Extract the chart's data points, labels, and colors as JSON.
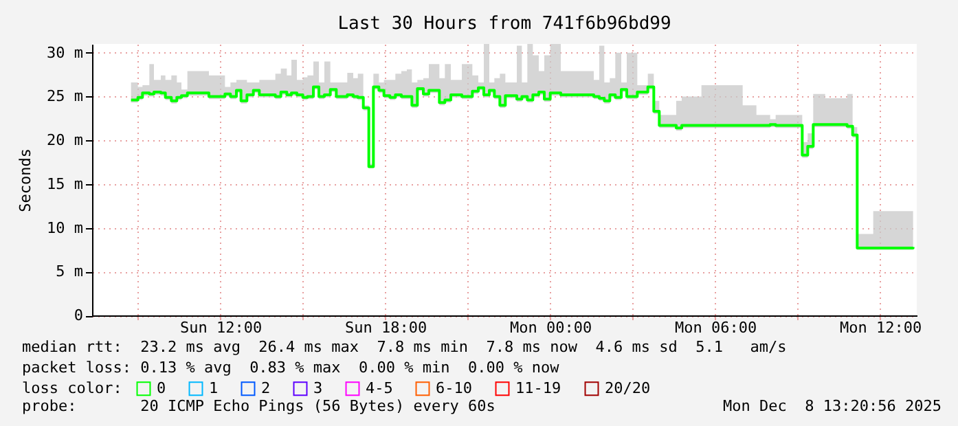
{
  "chart_data": {
    "type": "step",
    "title": "Last 30 Hours from 741f6b96bd99",
    "ylabel": "Seconds",
    "x": [
      "2025-12-07T08:45",
      "2025-12-07T09:00",
      "2025-12-07T09:10",
      "2025-12-07T09:25",
      "2025-12-07T09:35",
      "2025-12-07T09:50",
      "2025-12-07T10:00",
      "2025-12-07T10:13",
      "2025-12-07T10:25",
      "2025-12-07T10:35",
      "2025-12-07T10:48",
      "2025-12-07T11:35",
      "2025-12-07T12:10",
      "2025-12-07T12:22",
      "2025-12-07T12:35",
      "2025-12-07T12:45",
      "2025-12-07T12:58",
      "2025-12-07T13:12",
      "2025-12-07T13:25",
      "2025-12-07T14:00",
      "2025-12-07T14:12",
      "2025-12-07T14:25",
      "2025-12-07T14:35",
      "2025-12-07T14:47",
      "2025-12-07T15:00",
      "2025-12-07T15:10",
      "2025-12-07T15:23",
      "2025-12-07T15:35",
      "2025-12-07T15:47",
      "2025-12-07T16:00",
      "2025-12-07T16:13",
      "2025-12-07T16:37",
      "2025-12-07T16:50",
      "2025-12-07T17:00",
      "2025-12-07T17:12",
      "2025-12-07T17:24",
      "2025-12-07T17:34",
      "2025-12-07T17:46",
      "2025-12-07T17:57",
      "2025-12-07T18:10",
      "2025-12-07T18:22",
      "2025-12-07T18:35",
      "2025-12-07T18:47",
      "2025-12-07T18:58",
      "2025-12-07T19:10",
      "2025-12-07T19:23",
      "2025-12-07T19:35",
      "2025-12-07T19:58",
      "2025-12-07T20:10",
      "2025-12-07T20:23",
      "2025-12-07T20:47",
      "2025-12-07T21:10",
      "2025-12-07T21:23",
      "2025-12-07T21:35",
      "2025-12-07T21:47",
      "2025-12-07T21:58",
      "2025-12-07T22:10",
      "2025-12-07T22:22",
      "2025-12-07T22:47",
      "2025-12-07T22:58",
      "2025-12-07T23:10",
      "2025-12-07T23:22",
      "2025-12-07T23:35",
      "2025-12-07T23:47",
      "2025-12-08T00:00",
      "2025-12-08T00:23",
      "2025-12-08T01:35",
      "2025-12-08T01:47",
      "2025-12-08T01:58",
      "2025-12-08T02:10",
      "2025-12-08T02:22",
      "2025-12-08T02:35",
      "2025-12-08T02:47",
      "2025-12-08T03:10",
      "2025-12-08T03:33",
      "2025-12-08T03:46",
      "2025-12-08T03:58",
      "2025-12-08T04:35",
      "2025-12-08T04:47",
      "2025-12-08T05:30",
      "2025-12-08T06:15",
      "2025-12-08T07:00",
      "2025-12-08T07:30",
      "2025-12-08T08:00",
      "2025-12-08T08:12",
      "2025-12-08T09:10",
      "2025-12-08T09:22",
      "2025-12-08T09:34",
      "2025-12-08T10:00",
      "2025-12-08T10:48",
      "2025-12-08T11:00",
      "2025-12-08T11:10",
      "2025-12-08T11:45",
      "2025-12-08T12:30",
      "2025-12-08T13:12"
    ],
    "series": [
      {
        "name": "0",
        "color": "#00ff00",
        "values": [
          24.6,
          24.9,
          25.4,
          25.3,
          25.5,
          25.4,
          24.9,
          24.5,
          24.9,
          25.1,
          25.4,
          25.0,
          25.3,
          25.0,
          25.7,
          24.5,
          25.2,
          25.7,
          25.2,
          25.0,
          25.5,
          25.2,
          25.4,
          25.2,
          24.9,
          25.0,
          26.1,
          25.0,
          25.2,
          25.8,
          25.0,
          25.2,
          25.0,
          24.9,
          23.7,
          17.0,
          26.1,
          25.7,
          25.1,
          24.9,
          25.2,
          25.0,
          25.0,
          24.0,
          25.9,
          25.3,
          25.7,
          24.3,
          24.6,
          25.2,
          25.0,
          25.6,
          26.0,
          25.2,
          25.7,
          25.0,
          24.0,
          25.1,
          24.7,
          25.0,
          24.6,
          25.2,
          25.5,
          24.7,
          25.4,
          25.2,
          25.0,
          24.8,
          24.5,
          25.2,
          24.9,
          25.8,
          25.0,
          25.5,
          26.1,
          23.3,
          21.7,
          21.4,
          21.7,
          21.7,
          21.7,
          21.7,
          21.7,
          21.8,
          21.7,
          18.3,
          19.3,
          21.8,
          21.8,
          21.6,
          20.6,
          7.7,
          7.7,
          7.7,
          7.8
        ],
        "upper": [
          26.6,
          26.1,
          26.3,
          28.7,
          26.9,
          27.4,
          26.9,
          27.4,
          26.6,
          25.8,
          27.9,
          27.4,
          26.1,
          26.6,
          26.9,
          26.9,
          26.6,
          26.6,
          26.9,
          27.6,
          28.2,
          27.4,
          29.2,
          26.9,
          27.2,
          27.4,
          29.0,
          26.6,
          29.0,
          26.6,
          26.6,
          27.7,
          27.1,
          27.6,
          24.0,
          17.3,
          27.6,
          26.6,
          26.9,
          26.9,
          27.6,
          27.9,
          28.1,
          26.6,
          26.9,
          27.1,
          28.7,
          27.1,
          28.7,
          26.9,
          28.7,
          27.4,
          26.6,
          31.0,
          26.6,
          27.1,
          27.6,
          26.6,
          30.8,
          26.6,
          31.0,
          29.7,
          27.9,
          29.7,
          31.0,
          27.9,
          26.9,
          30.8,
          26.6,
          27.1,
          30.0,
          26.6,
          30.0,
          26.3,
          27.6,
          24.5,
          22.9,
          24.5,
          25.0,
          26.3,
          26.3,
          24.0,
          22.9,
          22.4,
          22.9,
          19.8,
          20.8,
          25.3,
          24.8,
          25.3,
          21.5,
          9.3,
          11.9,
          11.9,
          9.1
        ],
        "lower": [
          24.3,
          24.6,
          25.1,
          25.0,
          25.2,
          25.1,
          24.6,
          24.2,
          24.6,
          24.8,
          25.1,
          24.7,
          25.0,
          24.7,
          25.4,
          24.2,
          24.9,
          25.4,
          24.9,
          24.7,
          25.2,
          24.9,
          25.1,
          24.9,
          24.6,
          24.7,
          25.8,
          24.7,
          24.9,
          25.5,
          24.7,
          24.9,
          24.7,
          24.6,
          23.4,
          16.8,
          25.8,
          25.4,
          24.8,
          24.6,
          24.9,
          24.7,
          24.7,
          23.7,
          25.6,
          25.0,
          25.4,
          24.0,
          24.3,
          24.9,
          24.7,
          25.3,
          25.7,
          24.9,
          25.4,
          24.7,
          23.7,
          24.8,
          24.4,
          24.7,
          24.3,
          24.9,
          25.2,
          24.4,
          25.1,
          24.9,
          24.7,
          24.5,
          24.2,
          24.9,
          24.6,
          25.5,
          24.7,
          25.2,
          25.8,
          23.0,
          21.4,
          21.1,
          21.4,
          21.4,
          21.4,
          21.4,
          21.4,
          21.5,
          21.4,
          18.0,
          19.0,
          21.5,
          21.5,
          21.3,
          20.3,
          7.5,
          7.5,
          7.5,
          7.6
        ]
      },
      {
        "name": "1",
        "color": "#00b8ff",
        "values": [
          null,
          null,
          null,
          null,
          null,
          null,
          null,
          null,
          null,
          null,
          null,
          null,
          null,
          null,
          null,
          null,
          null,
          null,
          null,
          null,
          null,
          null,
          null,
          null,
          null,
          null,
          null,
          null,
          null,
          null,
          null,
          null,
          null,
          null,
          null,
          null,
          null,
          null,
          null,
          null,
          null,
          null,
          null,
          null,
          null,
          null,
          null,
          null,
          null,
          null,
          null,
          null,
          null,
          null,
          null,
          null,
          null,
          null,
          null,
          null,
          null,
          null,
          null,
          null,
          null,
          null,
          null,
          null,
          null,
          null,
          null,
          null,
          null,
          null,
          null,
          null,
          null,
          null,
          null,
          null,
          null,
          null,
          null,
          null,
          null,
          null,
          null,
          null,
          null,
          null,
          null,
          null,
          null,
          null,
          null
        ]
      },
      {
        "name": "2",
        "color": "#0059ff",
        "values": [
          null,
          null,
          null,
          null,
          null,
          null,
          null,
          null,
          null,
          null,
          null,
          null,
          null,
          null,
          null,
          null,
          null,
          null,
          null,
          null,
          null,
          null,
          null,
          null,
          null,
          null,
          null,
          null,
          null,
          null,
          null,
          null,
          null,
          null,
          null,
          null,
          null,
          null,
          null,
          null,
          null,
          null,
          null,
          null,
          null,
          null,
          null,
          null,
          null,
          null,
          null,
          null,
          null,
          null,
          null,
          null,
          null,
          null,
          null,
          null,
          null,
          null,
          null,
          null,
          null,
          null,
          null,
          null,
          null,
          null,
          null,
          null,
          null,
          null,
          null,
          null,
          null,
          null,
          null,
          null,
          null,
          null,
          null,
          null,
          null,
          null,
          null,
          null,
          null,
          null,
          null,
          null,
          null,
          null,
          null
        ]
      },
      {
        "name": "3",
        "color": "#5e00ff",
        "values": [
          null,
          null,
          null,
          null,
          null,
          null,
          null,
          null,
          null,
          null,
          null,
          null,
          null,
          null,
          null,
          null,
          null,
          null,
          null,
          null,
          null,
          null,
          null,
          null,
          null,
          null,
          null,
          null,
          null,
          null,
          null,
          null,
          null,
          null,
          null,
          null,
          null,
          null,
          null,
          null,
          null,
          null,
          null,
          null,
          null,
          null,
          null,
          null,
          null,
          null,
          null,
          null,
          null,
          null,
          null,
          null,
          null,
          null,
          null,
          null,
          null,
          null,
          null,
          null,
          null,
          null,
          null,
          null,
          null,
          null,
          null,
          null,
          null,
          null,
          null,
          null,
          null,
          null,
          null,
          null,
          null,
          null,
          null,
          null,
          null,
          null,
          null,
          null,
          null,
          null,
          null,
          null,
          null,
          null,
          null
        ]
      },
      {
        "name": "4-5",
        "color": "#ff00ff",
        "values": [
          null,
          null,
          null,
          null,
          null,
          null,
          null,
          null,
          null,
          null,
          null,
          null,
          null,
          null,
          null,
          null,
          null,
          null,
          null,
          null,
          null,
          null,
          null,
          null,
          null,
          null,
          null,
          null,
          null,
          null,
          null,
          null,
          null,
          null,
          null,
          null,
          null,
          null,
          null,
          null,
          null,
          null,
          null,
          null,
          null,
          null,
          null,
          null,
          null,
          null,
          null,
          null,
          null,
          null,
          null,
          null,
          null,
          null,
          null,
          null,
          null,
          null,
          null,
          null,
          null,
          null,
          null,
          null,
          null,
          null,
          null,
          null,
          null,
          null,
          null,
          null,
          null,
          null,
          null,
          null,
          null,
          null,
          null,
          null,
          null,
          null,
          null,
          null,
          null,
          null,
          null,
          null,
          null,
          null,
          null
        ]
      },
      {
        "name": "6-10",
        "color": "#ff5e00",
        "values": [
          null,
          null,
          null,
          null,
          null,
          null,
          null,
          null,
          null,
          null,
          null,
          null,
          null,
          null,
          null,
          null,
          null,
          null,
          null,
          null,
          null,
          null,
          null,
          null,
          null,
          null,
          null,
          null,
          null,
          null,
          null,
          null,
          null,
          null,
          null,
          null,
          null,
          null,
          null,
          null,
          null,
          null,
          null,
          null,
          null,
          null,
          null,
          null,
          null,
          null,
          null,
          null,
          null,
          null,
          null,
          null,
          null,
          null,
          null,
          null,
          null,
          null,
          null,
          null,
          null,
          null,
          null,
          null,
          null,
          null,
          null,
          null,
          null,
          null,
          null,
          null,
          null,
          null,
          null,
          null,
          null,
          null,
          null,
          null,
          null,
          null,
          null,
          null,
          null,
          null,
          null,
          null,
          null,
          null,
          null
        ]
      },
      {
        "name": "11-19",
        "color": "#ff0000",
        "values": [
          null,
          null,
          null,
          null,
          null,
          null,
          null,
          null,
          null,
          null,
          null,
          null,
          null,
          null,
          null,
          null,
          null,
          null,
          null,
          null,
          null,
          null,
          null,
          null,
          null,
          null,
          null,
          null,
          null,
          null,
          null,
          null,
          null,
          null,
          null,
          null,
          null,
          null,
          null,
          null,
          null,
          null,
          null,
          null,
          null,
          null,
          null,
          null,
          null,
          null,
          null,
          null,
          null,
          null,
          null,
          null,
          null,
          null,
          null,
          null,
          null,
          null,
          null,
          null,
          null,
          null,
          null,
          null,
          null,
          null,
          null,
          null,
          null,
          null,
          null,
          null,
          null,
          null,
          null,
          null,
          null,
          null,
          null,
          null,
          null,
          null,
          null,
          null,
          null,
          null,
          null,
          null,
          null,
          null,
          null
        ]
      },
      {
        "name": "20/20",
        "color": "#a10000",
        "values": [
          null,
          null,
          null,
          null,
          null,
          null,
          null,
          null,
          null,
          null,
          null,
          null,
          null,
          null,
          null,
          null,
          null,
          null,
          null,
          null,
          null,
          null,
          null,
          null,
          null,
          null,
          null,
          null,
          null,
          null,
          null,
          null,
          null,
          null,
          null,
          null,
          null,
          null,
          null,
          null,
          null,
          null,
          null,
          null,
          null,
          null,
          null,
          null,
          null,
          null,
          null,
          null,
          null,
          null,
          null,
          null,
          null,
          null,
          null,
          null,
          null,
          null,
          null,
          null,
          null,
          null,
          null,
          null,
          null,
          null,
          null,
          null,
          null,
          null,
          null,
          null,
          null,
          null,
          null,
          null,
          null,
          null,
          null,
          null,
          null,
          null,
          null,
          null,
          null,
          null,
          null,
          null,
          null,
          null,
          null
        ]
      }
    ],
    "legend_title": "loss color:",
    "legend": "bottom",
    "xlim": [
      "2025-12-07T07:20",
      "2025-12-08T13:20"
    ],
    "xticks": [
      {
        "value": "2025-12-07T09:00",
        "label": null
      },
      {
        "value": "2025-12-07T12:00",
        "label": "Sun 12:00"
      },
      {
        "value": "2025-12-07T15:00",
        "label": null
      },
      {
        "value": "2025-12-07T18:00",
        "label": "Sun 18:00"
      },
      {
        "value": "2025-12-07T21:00",
        "label": null
      },
      {
        "value": "2025-12-08T00:00",
        "label": "Mon 00:00"
      },
      {
        "value": "2025-12-08T03:00",
        "label": null
      },
      {
        "value": "2025-12-08T06:00",
        "label": "Mon 06:00"
      },
      {
        "value": "2025-12-08T09:00",
        "label": null
      },
      {
        "value": "2025-12-08T12:00",
        "label": "Mon 12:00"
      }
    ],
    "ylim": [
      0,
      31
    ],
    "yticks": [
      {
        "value": 0,
        "label": "0"
      },
      {
        "value": 5,
        "label": "5 m"
      },
      {
        "value": 10,
        "label": "10 m"
      },
      {
        "value": 15,
        "label": "15 m"
      },
      {
        "value": 20,
        "label": "20 m"
      },
      {
        "value": 25,
        "label": "25 m"
      },
      {
        "value": 30,
        "label": "30 m"
      }
    ],
    "grid": true,
    "annotations": [
      "median rtt:  23.2 ms avg  26.4 ms max  7.8 ms min  7.8 ms now  4.6 ms sd  5.1   am/s",
      "packet loss: 0.13 % avg  0.83 % max  0.00 % min  0.00 % now",
      "probe:       20 ICMP Echo Pings (56 Bytes) every 60s",
      "Mon Dec  8 13:20:56 2025"
    ]
  }
}
